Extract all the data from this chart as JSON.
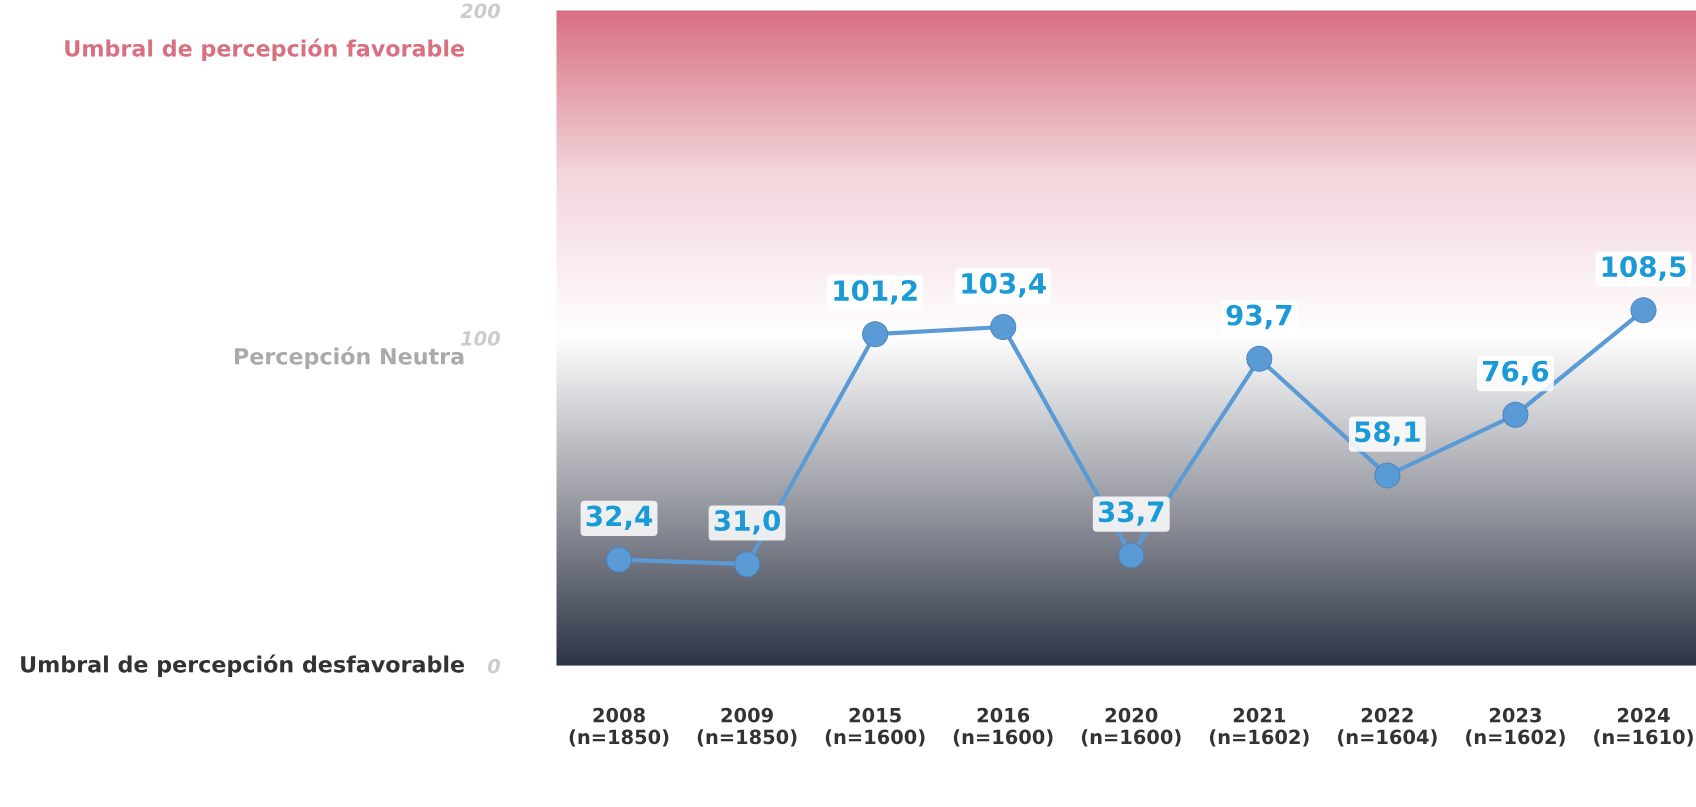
{
  "chart_data": {
    "type": "line",
    "categories": [
      "2008\n(n=1850)",
      "2009\n(n=1850)",
      "2015\n(n=1600)",
      "2016\n(n=1600)",
      "2020\n(n=1600)",
      "2021\n(n=1602)",
      "2022\n(n=1604)",
      "2023\n(n=1602)",
      "2024\n(n=1610)"
    ],
    "series": [
      {
        "color": "#5b9bd5",
        "values": [
          32.4,
          31.0,
          101.2,
          103.4,
          33.7,
          93.7,
          58.1,
          76.6,
          108.5
        ]
      }
    ],
    "value_labels": [
      "32,4",
      "31,0",
      "101,2",
      "103,4",
      "33,7",
      "93,7",
      "58,1",
      "76,6",
      "108,5"
    ],
    "ylim": [
      0,
      200
    ],
    "yticks": [
      0,
      100,
      200
    ],
    "marker": "circle",
    "line_style": "solid",
    "grid": false,
    "legend": false,
    "annotations": [
      "Umbral de percepción favorable",
      "Percepción Neutra",
      "Umbral de percepción desfavorable"
    ]
  }
}
